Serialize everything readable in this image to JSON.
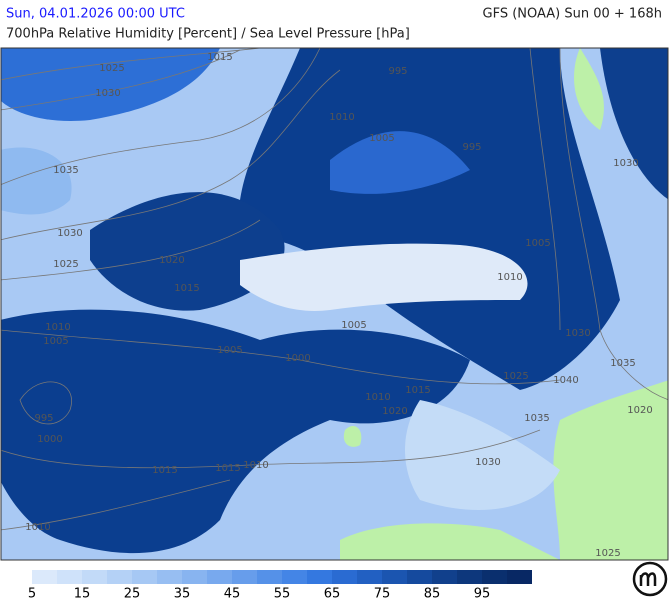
{
  "header": {
    "left": "Sun, 04.01.2026 00:00 UTC",
    "right": "GFS (NOAA) Sun 00 + 168h",
    "subtitle": "700hPa Relative Humidity [Percent] / Sea Level Pressure [hPa]"
  },
  "isobar_labels": [
    1015,
    1025,
    1030,
    995,
    1010,
    1005,
    995,
    1030,
    1035,
    1030,
    1025,
    1020,
    1015,
    1005,
    1010,
    1005,
    1010,
    1005,
    1005,
    1000,
    1030,
    1035,
    1025,
    1040,
    1015,
    1010,
    1020,
    995,
    1000,
    1035,
    1020,
    1015,
    1015,
    1010,
    1030,
    1010,
    1025
  ],
  "colorbar": {
    "colors": [
      "#dbe9fb",
      "#cfe2fa",
      "#c2daf8",
      "#b4d1f6",
      "#a6c8f4",
      "#97bef2",
      "#88b4f0",
      "#78a9ee",
      "#679deb",
      "#5591e8",
      "#4485e6",
      "#3478e0",
      "#2a6bd2",
      "#2260c2",
      "#1b55b0",
      "#154a9e",
      "#11408c",
      "#0d377c",
      "#0a2f6e",
      "#082864"
    ],
    "labels": [
      5,
      15,
      25,
      35,
      45,
      55,
      65,
      75,
      85,
      95
    ]
  }
}
